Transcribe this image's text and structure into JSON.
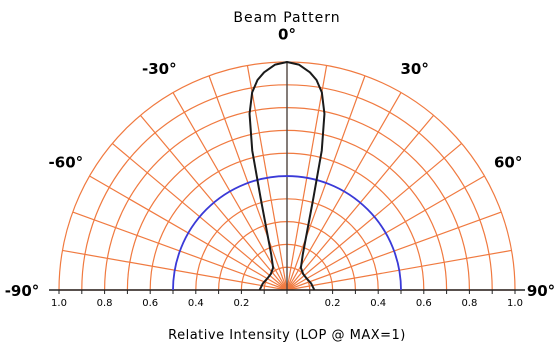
{
  "chart_data": {
    "type": "polar-half",
    "title": "Beam Pattern",
    "xlabel": "Relative Intensity (LOP @ MAX=1)",
    "angle_labels": [
      "-90°",
      "-60°",
      "-30°",
      "0°",
      "30°",
      "60°",
      "90°"
    ],
    "angle_ticks_deg": [
      -90,
      -60,
      -30,
      0,
      30,
      60,
      90
    ],
    "angle_grid_step_deg": 10,
    "radial_grid_step": 0.1,
    "radial_max": 1.0,
    "radial_tick_labels_left": [
      "1.0",
      "0.8",
      "0.6",
      "0.4",
      "0.2"
    ],
    "radial_tick_labels_right": [
      "0.2",
      "0.4",
      "0.6",
      "0.8",
      "1.0"
    ],
    "reference_circle": {
      "r": 0.5,
      "color": "#3a3ad8"
    },
    "grid_color": "#f07a40",
    "series": [
      {
        "color": "#1a1a1a",
        "points": [
          {
            "angle": 0,
            "r": 1.0
          },
          {
            "angle": 3,
            "r": 0.99
          },
          {
            "angle": 6,
            "r": 0.96
          },
          {
            "angle": 8,
            "r": 0.93
          },
          {
            "angle": 10,
            "r": 0.88
          },
          {
            "angle": 12,
            "r": 0.79
          },
          {
            "angle": 14,
            "r": 0.63
          },
          {
            "angle": 16,
            "r": 0.42
          },
          {
            "angle": 19,
            "r": 0.27
          },
          {
            "angle": 24,
            "r": 0.17
          },
          {
            "angle": 32,
            "r": 0.115
          },
          {
            "angle": 45,
            "r": 0.1
          },
          {
            "angle": 60,
            "r": 0.1
          },
          {
            "angle": 75,
            "r": 0.11
          },
          {
            "angle": 90,
            "r": 0.12
          }
        ]
      }
    ]
  }
}
